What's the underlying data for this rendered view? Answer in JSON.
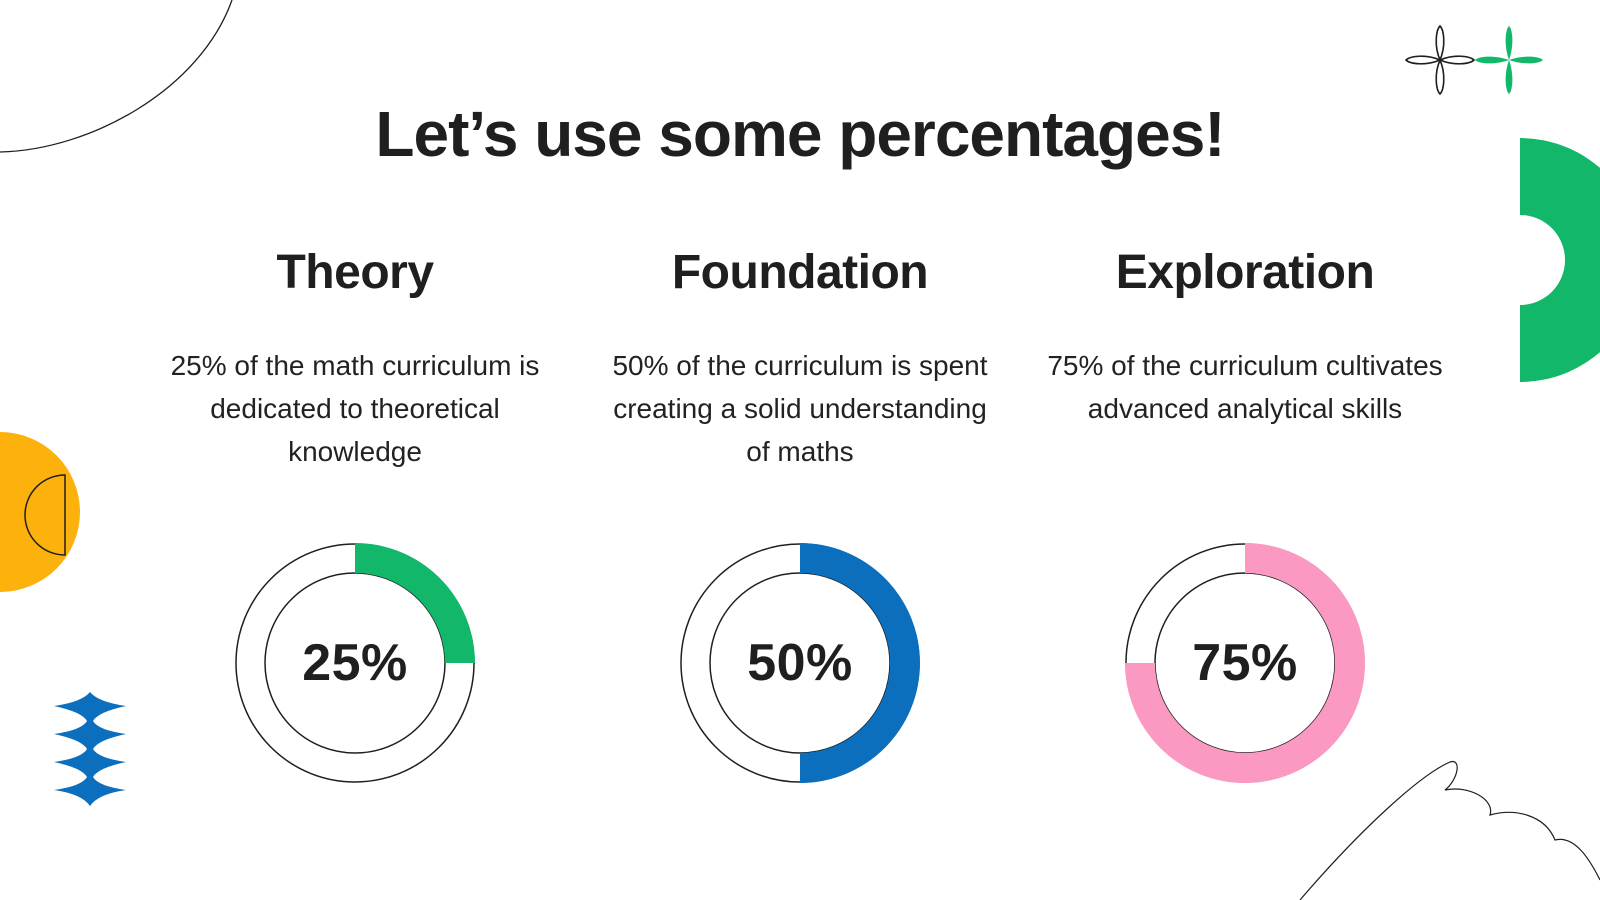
{
  "slide": {
    "title": "Let’s use some percentages!"
  },
  "columns": [
    {
      "heading": "Theory",
      "description": "25% of the math curriculum is dedicated to theoretical knowledge",
      "percent_label": "25%",
      "percent": 25,
      "color": "#12b76a"
    },
    {
      "heading": "Foundation",
      "description": "50% of the curriculum is spent creating a solid understanding of maths",
      "percent_label": "50%",
      "percent": 50,
      "color": "#0b6fbe"
    },
    {
      "heading": "Exploration",
      "description": "75% of the curriculum cultivates advanced analytical skills",
      "percent_label": "75%",
      "percent": 75,
      "color": "#fb99c2"
    }
  ],
  "decorations": {
    "green": "#12b76a",
    "blue": "#0b6fbe",
    "yellow": "#fdb10c",
    "outline": "#1f1f1f"
  }
}
